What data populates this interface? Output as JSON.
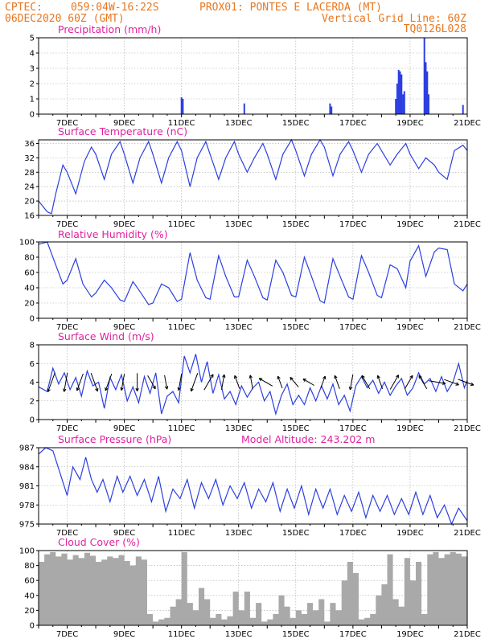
{
  "header": {
    "line1_left": "CPTEC:",
    "line1_coords": "059:04W-16:22S",
    "line1_station": "PROX01: PONTES E LACERDA (MT)",
    "line2_left": "06DEC2020 60Z (GMT)",
    "line2_right": "Vertical Grid Line: 60Z",
    "line3_right": "TQ0126L028"
  },
  "x_axis": {
    "unit": "days (December 2020)",
    "range": [
      6,
      21
    ],
    "tick_values": [
      7,
      9,
      11,
      13,
      15,
      17,
      19,
      21
    ],
    "tick_labels": [
      "7DEC",
      "9DEC",
      "11DEC",
      "13DEC",
      "15DEC",
      "17DEC",
      "19DEC",
      "21DEC"
    ]
  },
  "colors": {
    "header": "#e8761f",
    "panel_title": "#e0219f",
    "line": "#2c3fe0",
    "bars": "#2c3fe0",
    "cloud": "#a9a9a9",
    "wind_arrow": "#000000"
  },
  "chart_data": [
    {
      "id": "precip",
      "type": "bar",
      "title": "Precipitation (mm/h)",
      "ylim": [
        0,
        5
      ],
      "yticks": [
        0,
        1,
        2,
        3,
        4,
        5
      ],
      "x": [
        11.0,
        11.05,
        13.2,
        16.2,
        16.25,
        18.5,
        18.55,
        18.6,
        18.65,
        18.7,
        18.75,
        18.8,
        19.5,
        19.55,
        19.6,
        19.65,
        20.85
      ],
      "values": [
        1.1,
        1.0,
        0.7,
        0.7,
        0.5,
        1.0,
        2.0,
        2.9,
        2.8,
        2.6,
        1.3,
        1.5,
        5.0,
        3.4,
        2.8,
        1.3,
        0.6
      ]
    },
    {
      "id": "temp",
      "type": "line",
      "title": "Surface Temperature (nC)",
      "ylim": [
        16,
        37
      ],
      "yticks": [
        16,
        20,
        24,
        28,
        32,
        36
      ],
      "x": [
        6.0,
        6.3,
        6.45,
        6.6,
        6.85,
        7.0,
        7.3,
        7.6,
        7.85,
        8.0,
        8.3,
        8.55,
        8.85,
        9.0,
        9.3,
        9.55,
        9.85,
        10.0,
        10.3,
        10.55,
        10.85,
        11.0,
        11.3,
        11.55,
        11.85,
        12.0,
        12.3,
        12.55,
        12.85,
        13.0,
        13.3,
        13.55,
        13.85,
        14.0,
        14.3,
        14.55,
        14.85,
        15.0,
        15.3,
        15.55,
        15.85,
        16.0,
        16.3,
        16.55,
        16.85,
        17.0,
        17.3,
        17.55,
        17.85,
        18.0,
        18.3,
        18.55,
        18.85,
        19.0,
        19.3,
        19.55,
        19.85,
        20.0,
        20.3,
        20.55,
        20.85,
        21.0
      ],
      "values": [
        20,
        17,
        16.5,
        22,
        30,
        28,
        22,
        31,
        35,
        33,
        26,
        33,
        36.5,
        33,
        25,
        32,
        36.5,
        33,
        25,
        32,
        36.5,
        34,
        24,
        32,
        36.5,
        33,
        26,
        32,
        36.5,
        33,
        28,
        32,
        36,
        33,
        26,
        33,
        37,
        34,
        27,
        33,
        37,
        35,
        27,
        33,
        36.5,
        34,
        28,
        33,
        36,
        34,
        30,
        33,
        36,
        33,
        29,
        32,
        30,
        28,
        26,
        34,
        35.5,
        34
      ]
    },
    {
      "id": "rh",
      "type": "line",
      "title": "Relative Humidity (%)",
      "ylim": [
        0,
        100
      ],
      "yticks": [
        0,
        20,
        40,
        60,
        80,
        100
      ],
      "x": [
        6.0,
        6.3,
        6.55,
        6.85,
        7.0,
        7.3,
        7.55,
        7.85,
        8.0,
        8.3,
        8.55,
        8.85,
        9.0,
        9.3,
        9.55,
        9.85,
        10.0,
        10.3,
        10.55,
        10.85,
        11.0,
        11.3,
        11.55,
        11.85,
        12.0,
        12.3,
        12.55,
        12.85,
        13.0,
        13.3,
        13.55,
        13.85,
        14.0,
        14.3,
        14.55,
        14.85,
        15.0,
        15.3,
        15.55,
        15.85,
        16.0,
        16.3,
        16.55,
        16.85,
        17.0,
        17.3,
        17.55,
        17.85,
        18.0,
        18.3,
        18.55,
        18.85,
        19.0,
        19.3,
        19.55,
        19.85,
        20.0,
        20.3,
        20.55,
        20.85,
        21.0
      ],
      "values": [
        97,
        100,
        75,
        45,
        50,
        78,
        45,
        28,
        33,
        50,
        40,
        24,
        22,
        48,
        35,
        18,
        20,
        45,
        40,
        22,
        25,
        86,
        50,
        27,
        25,
        82,
        55,
        28,
        28,
        76,
        55,
        27,
        24,
        76,
        60,
        30,
        28,
        80,
        55,
        23,
        20,
        78,
        55,
        28,
        25,
        82,
        60,
        30,
        27,
        70,
        65,
        40,
        75,
        95,
        55,
        87,
        92,
        90,
        45,
        36,
        45
      ]
    },
    {
      "id": "wind",
      "type": "line",
      "title": "Surface Wind (m/s)",
      "ylim": [
        0,
        8
      ],
      "yticks": [
        0,
        2,
        4,
        6,
        8
      ],
      "x": [
        6.0,
        6.3,
        6.5,
        6.7,
        6.9,
        7.1,
        7.3,
        7.5,
        7.7,
        7.9,
        8.1,
        8.3,
        8.5,
        8.7,
        8.9,
        9.1,
        9.3,
        9.5,
        9.7,
        9.9,
        10.1,
        10.3,
        10.5,
        10.7,
        10.9,
        11.1,
        11.3,
        11.5,
        11.7,
        11.9,
        12.1,
        12.3,
        12.5,
        12.7,
        12.9,
        13.1,
        13.3,
        13.5,
        13.7,
        13.9,
        14.1,
        14.3,
        14.5,
        14.7,
        14.9,
        15.1,
        15.3,
        15.5,
        15.7,
        15.9,
        16.1,
        16.3,
        16.5,
        16.7,
        16.9,
        17.1,
        17.3,
        17.5,
        17.7,
        17.9,
        18.1,
        18.3,
        18.5,
        18.7,
        18.9,
        19.1,
        19.3,
        19.5,
        19.7,
        19.9,
        20.1,
        20.3,
        20.5,
        20.7,
        20.9,
        21.0
      ],
      "values": [
        3.5,
        3.0,
        5.5,
        3.8,
        5.0,
        3.2,
        4.5,
        2.5,
        5.2,
        3.6,
        4.0,
        1.2,
        4.5,
        3.2,
        4.8,
        2.0,
        3.5,
        1.8,
        4.6,
        2.8,
        5.0,
        0.6,
        2.5,
        3.0,
        1.8,
        6.8,
        5.0,
        7.0,
        4.0,
        6.2,
        2.8,
        4.8,
        2.2,
        3.0,
        1.6,
        3.6,
        2.4,
        3.4,
        4.0,
        2.0,
        3.0,
        0.6,
        2.6,
        3.8,
        1.6,
        2.6,
        1.6,
        3.4,
        2.0,
        3.6,
        2.2,
        3.8,
        1.6,
        2.6,
        0.9,
        3.6,
        4.6,
        3.4,
        4.2,
        2.8,
        4.0,
        2.6,
        3.6,
        4.4,
        2.6,
        3.4,
        5.0,
        3.8,
        4.4,
        3.0,
        4.6,
        3.0,
        4.0,
        6.0,
        3.4,
        4.2
      ],
      "arrows": {
        "x": [
          6.45,
          6.95,
          7.45,
          7.95,
          8.45,
          8.95,
          9.45,
          9.95,
          10.45,
          10.95,
          11.45,
          11.95,
          12.45,
          12.95,
          13.45,
          13.95,
          14.45,
          14.95,
          15.45,
          15.95,
          16.45,
          16.95,
          17.45,
          17.95,
          18.45,
          18.95,
          19.45,
          19.95,
          20.45,
          20.95
        ],
        "speed": [
          5.5,
          5.0,
          4.5,
          5.0,
          4.5,
          4.0,
          4.5,
          3.5,
          3.0,
          4.0,
          5.0,
          4.5,
          3.5,
          3.0,
          3.0,
          3.5,
          2.5,
          2.5,
          2.5,
          2.5,
          3.0,
          3.5,
          3.5,
          3.0,
          4.0,
          3.5,
          3.5,
          4.0,
          3.5,
          4.0
        ],
        "dir_deg": [
          200,
          190,
          200,
          160,
          200,
          190,
          180,
          150,
          170,
          190,
          200,
          30,
          10,
          340,
          350,
          300,
          340,
          320,
          300,
          20,
          340,
          190,
          330,
          340,
          30,
          30,
          330,
          100,
          110,
          110
        ]
      }
    },
    {
      "id": "pres",
      "type": "line",
      "title": "Surface Pressure (hPa)",
      "annotation": "Model Altitude: 243.202 m",
      "ylim": [
        975,
        987
      ],
      "yticks": [
        975,
        978,
        981,
        984,
        987
      ],
      "x": [
        6.0,
        6.25,
        6.5,
        6.75,
        7.0,
        7.2,
        7.45,
        7.65,
        7.85,
        8.05,
        8.25,
        8.5,
        8.75,
        8.95,
        9.2,
        9.45,
        9.7,
        9.95,
        10.2,
        10.45,
        10.7,
        10.95,
        11.2,
        11.45,
        11.7,
        11.95,
        12.2,
        12.45,
        12.7,
        12.95,
        13.2,
        13.45,
        13.7,
        13.95,
        14.2,
        14.45,
        14.7,
        14.95,
        15.2,
        15.45,
        15.7,
        15.95,
        16.2,
        16.45,
        16.7,
        16.95,
        17.2,
        17.45,
        17.7,
        17.95,
        18.2,
        18.45,
        18.7,
        18.95,
        19.2,
        19.45,
        19.7,
        19.95,
        20.2,
        20.45,
        20.7,
        21.0
      ],
      "values": [
        986,
        987,
        986.5,
        983,
        979.5,
        984,
        982,
        985.5,
        982,
        980,
        982,
        978.5,
        982.5,
        980,
        982.5,
        979.5,
        982,
        978.5,
        982.5,
        977,
        980.5,
        979,
        982,
        977.5,
        981.5,
        979,
        982,
        978,
        981,
        979,
        981.5,
        977.5,
        980.5,
        978.5,
        981.5,
        977,
        980.5,
        977.5,
        981,
        976.5,
        980.5,
        977.5,
        980.5,
        976.5,
        979.5,
        977,
        980,
        976,
        979.5,
        977,
        979.5,
        976.5,
        979,
        976.5,
        980,
        976.5,
        979.5,
        976,
        978,
        975,
        977.5,
        975.5
      ]
    },
    {
      "id": "cloud",
      "type": "area",
      "title": "Cloud Cover (%)",
      "ylim": [
        0,
        100
      ],
      "yticks": [
        0,
        20,
        40,
        60,
        80,
        100
      ],
      "x": [
        6.0,
        6.2,
        6.4,
        6.6,
        6.8,
        7.0,
        7.2,
        7.4,
        7.6,
        7.8,
        8.0,
        8.2,
        8.4,
        8.6,
        8.8,
        9.0,
        9.2,
        9.4,
        9.6,
        9.8,
        10.0,
        10.2,
        10.4,
        10.6,
        10.8,
        11.0,
        11.2,
        11.4,
        11.6,
        11.8,
        12.0,
        12.2,
        12.4,
        12.6,
        12.8,
        13.0,
        13.2,
        13.4,
        13.6,
        13.8,
        14.0,
        14.2,
        14.4,
        14.6,
        14.8,
        15.0,
        15.2,
        15.4,
        15.6,
        15.8,
        16.0,
        16.2,
        16.4,
        16.6,
        16.8,
        17.0,
        17.2,
        17.4,
        17.6,
        17.8,
        18.0,
        18.2,
        18.4,
        18.6,
        18.8,
        19.0,
        19.2,
        19.4,
        19.6,
        19.8,
        20.0,
        20.2,
        20.4,
        20.6,
        20.8,
        21.0
      ],
      "values": [
        85,
        95,
        98,
        92,
        96,
        88,
        94,
        90,
        97,
        93,
        85,
        88,
        92,
        90,
        94,
        86,
        80,
        92,
        88,
        15,
        5,
        8,
        10,
        25,
        35,
        98,
        30,
        20,
        50,
        35,
        10,
        15,
        8,
        12,
        45,
        20,
        45,
        10,
        30,
        5,
        8,
        15,
        40,
        25,
        10,
        20,
        15,
        30,
        20,
        35,
        5,
        30,
        20,
        60,
        85,
        70,
        8,
        10,
        15,
        40,
        55,
        95,
        35,
        25,
        90,
        60,
        85,
        15,
        95,
        98,
        90,
        95,
        98,
        96,
        92,
        88
      ]
    }
  ]
}
